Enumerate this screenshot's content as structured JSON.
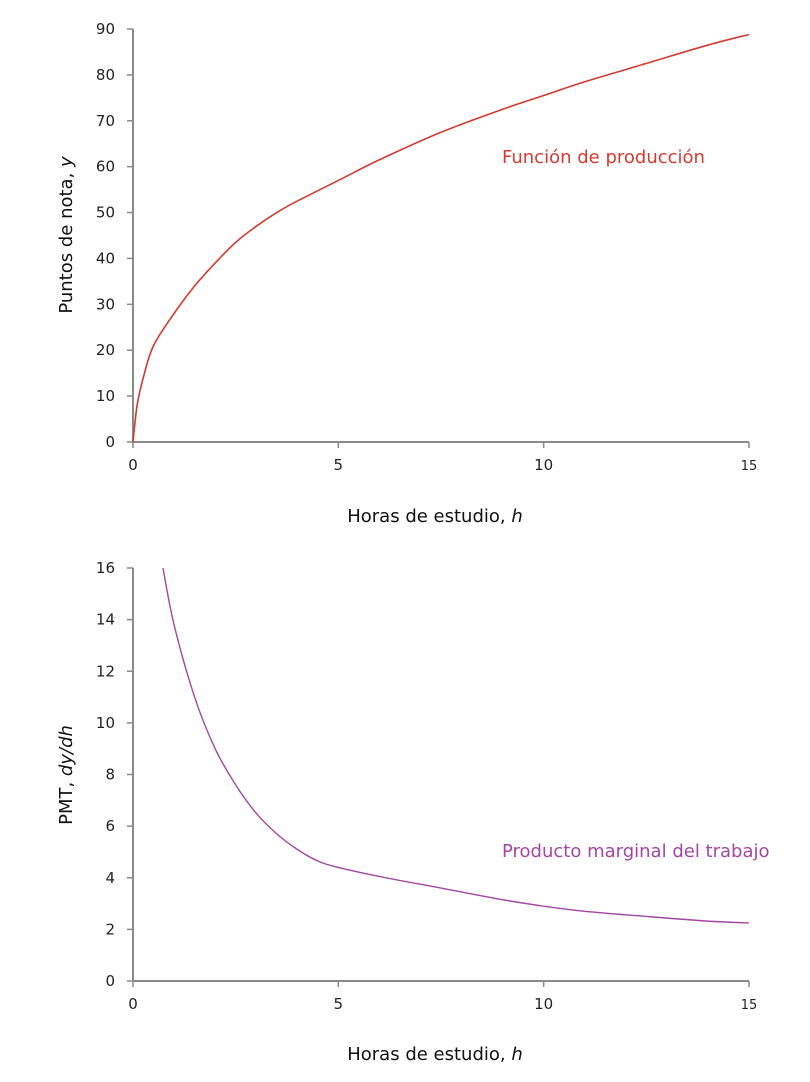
{
  "chart_data": [
    {
      "type": "line",
      "title": "",
      "xlabel": "Horas de estudio, h",
      "xlabel_main": "Horas de estudio, ",
      "xlabel_var": "h",
      "ylabel": "Puntos de nota, y",
      "ylabel_main": "Puntos de nota, ",
      "ylabel_var": "y",
      "xlim": [
        0,
        15
      ],
      "ylim": [
        0,
        90
      ],
      "x_ticks": [
        "0",
        "5",
        "10",
        "15"
      ],
      "y_ticks": [
        "0",
        "10",
        "20",
        "30",
        "40",
        "50",
        "60",
        "70",
        "80",
        "90"
      ],
      "grid": false,
      "legend": "inline label",
      "series": [
        {
          "name": "Función de producción",
          "color": "#d63a2f",
          "x": [
            0,
            0.1,
            0.25,
            0.5,
            1,
            1.5,
            2,
            2.5,
            3,
            3.5,
            4,
            5,
            6,
            7.5,
            9,
            10,
            11,
            12.5,
            14,
            15
          ],
          "y": [
            0,
            8,
            14,
            21,
            28,
            34,
            39,
            43.5,
            47,
            50,
            52.5,
            57,
            61.5,
            67.5,
            72.5,
            75.5,
            78.5,
            82.5,
            86.5,
            88.8
          ]
        }
      ]
    },
    {
      "type": "line",
      "title": "",
      "xlabel": "Horas de estudio, h",
      "xlabel_main": "Horas de estudio, ",
      "xlabel_var": "h",
      "ylabel": "PMT, dy/dh",
      "ylabel_main": "PMT, ",
      "ylabel_var": "dy/dh",
      "xlim": [
        0,
        15
      ],
      "ylim": [
        0,
        16
      ],
      "x_ticks": [
        "0",
        "5",
        "10",
        "15"
      ],
      "y_ticks": [
        "0",
        "2",
        "4",
        "6",
        "8",
        "10",
        "12",
        "14",
        "16"
      ],
      "grid": false,
      "legend": "inline label",
      "series": [
        {
          "name": "Producto marginal del trabajo",
          "color": "#a347a3",
          "x": [
            0.73,
            1,
            1.5,
            2,
            2.5,
            3,
            3.5,
            4,
            4.5,
            5,
            6,
            7.5,
            9,
            10,
            11,
            12.5,
            14,
            15
          ],
          "y": [
            16,
            13.8,
            11,
            9,
            7.6,
            6.5,
            5.7,
            5.1,
            4.65,
            4.4,
            4.05,
            3.6,
            3.15,
            2.9,
            2.7,
            2.5,
            2.32,
            2.25
          ]
        }
      ]
    }
  ]
}
